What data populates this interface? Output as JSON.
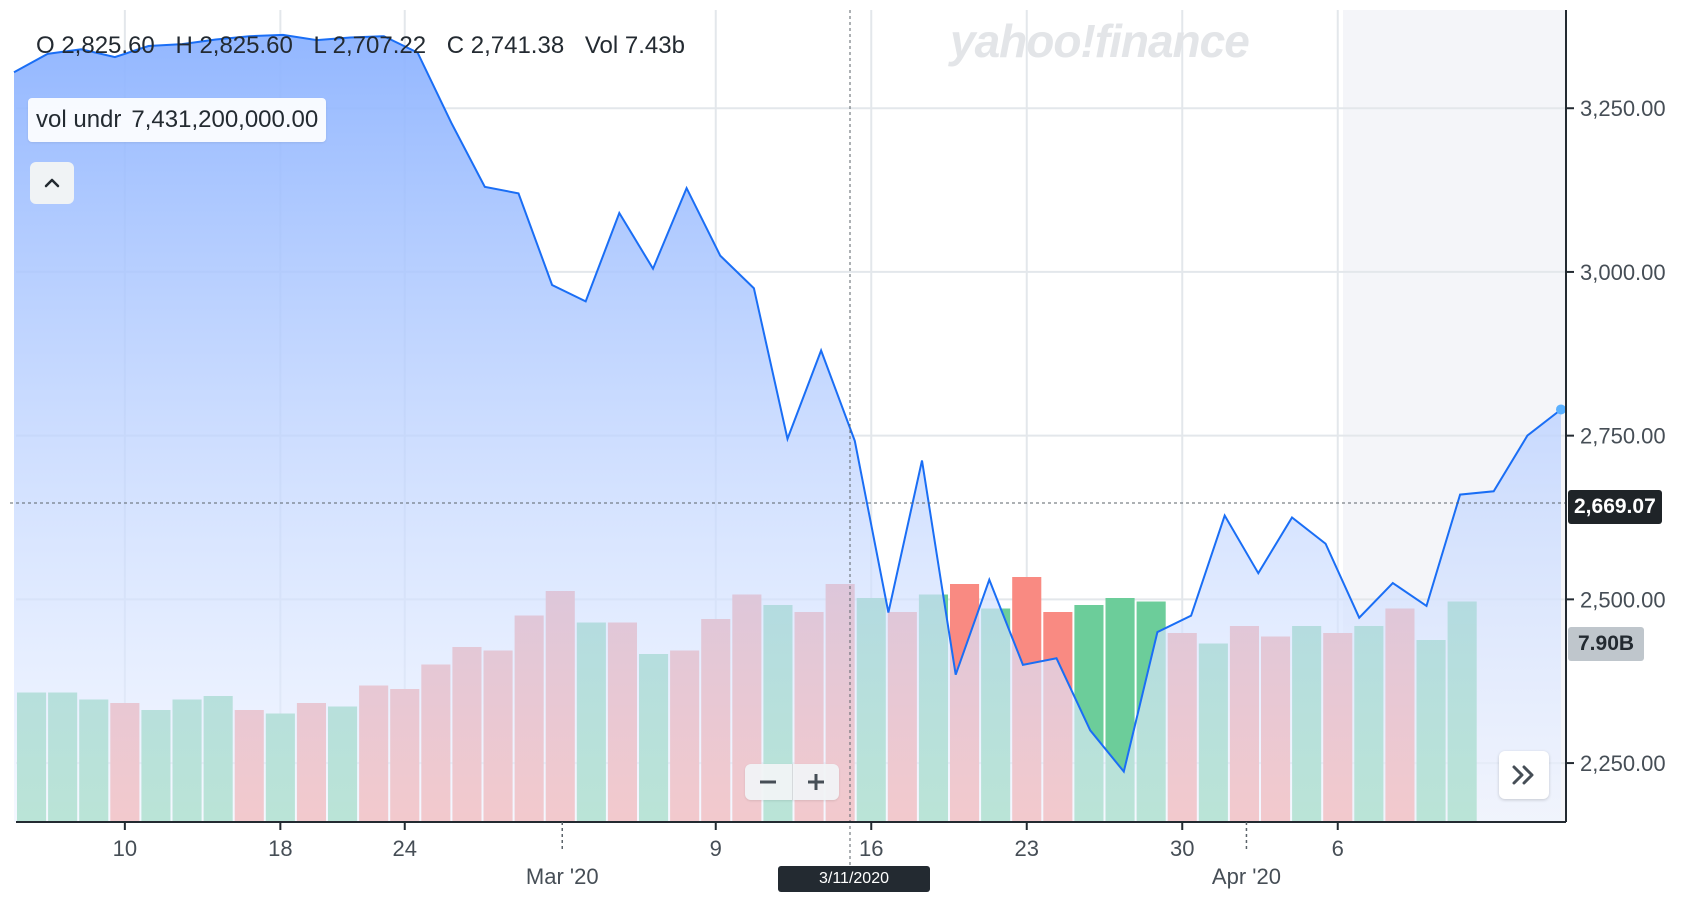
{
  "watermark": "yahoo!finance",
  "ohlc": {
    "open": "O 2,825.60",
    "high": "H 2,825.60",
    "low": "L 2,707.22",
    "close": "C 2,741.38",
    "vol": "Vol 7.43b"
  },
  "tooltip": {
    "label": "vol undr",
    "value": "7,431,200,000.00"
  },
  "crosshair": {
    "price_label": "2,669.07",
    "date_label": "3/11/2020",
    "volume_label": "7.90B"
  },
  "colors": {
    "line": "#1a6ef5",
    "area_top": "#8db3ff",
    "up": "#6ccd9a",
    "down": "#f98a82",
    "grid": "#e3e7eb"
  },
  "chart_data": {
    "type": "line",
    "title": "",
    "xlabel": "",
    "ylabel": "",
    "ylim": [
      2160,
      3400
    ],
    "y_ticks": [
      "3,250.00",
      "3,000.00",
      "2,750.00",
      "2,500.00",
      "2,250.00"
    ],
    "y_tick_values": [
      3250,
      3000,
      2750,
      2500,
      2250
    ],
    "x_ticks": [
      {
        "label": "10",
        "i": 3.5
      },
      {
        "label": "18",
        "i": 8.5
      },
      {
        "label": "24",
        "i": 12.5
      },
      {
        "label": "9",
        "i": 22.5
      },
      {
        "label": "16",
        "i": 27.5
      },
      {
        "label": "23",
        "i": 32.5
      },
      {
        "label": "30",
        "i": 37.5
      },
      {
        "label": "6",
        "i": 42.5
      }
    ],
    "x_month_labels": [
      {
        "label": "Mar '20",
        "i": 17.5
      },
      {
        "label": "Apr '20",
        "i": 39.5
      }
    ],
    "series": [
      {
        "values": [
          3305,
          3333,
          3340,
          3328,
          3345,
          3348,
          3355,
          3360,
          3362,
          3354,
          3358,
          3360,
          3335,
          3228,
          3130,
          3120,
          2980,
          2955,
          3090,
          3005,
          3128,
          3025,
          2975,
          2745,
          2880,
          2742,
          2480,
          2712,
          2385,
          2530,
          2400,
          2410,
          2300,
          2237,
          2450,
          2475,
          2628,
          2540,
          2625,
          2585,
          2472,
          2525,
          2490,
          2660,
          2665,
          2750,
          2790
        ]
      }
    ],
    "volume": {
      "unit": "B",
      "values": [
        3.7,
        3.7,
        3.5,
        3.4,
        3.2,
        3.5,
        3.6,
        3.2,
        3.1,
        3.4,
        3.3,
        3.9,
        3.8,
        4.5,
        5.0,
        4.9,
        5.9,
        6.6,
        5.7,
        5.7,
        4.8,
        4.9,
        5.8,
        6.5,
        6.2,
        6.0,
        6.8,
        6.4,
        6.0,
        6.5,
        6.8,
        6.1,
        7.0,
        6.0,
        6.2,
        6.4,
        6.3,
        5.4,
        5.1,
        5.6,
        5.3,
        5.6,
        5.4,
        5.6,
        6.1,
        5.2,
        6.3
      ],
      "up": [
        true,
        true,
        true,
        false,
        true,
        true,
        true,
        false,
        true,
        false,
        true,
        false,
        false,
        false,
        false,
        false,
        false,
        false,
        true,
        false,
        true,
        false,
        false,
        false,
        true,
        false,
        false,
        true,
        false,
        true,
        false,
        true,
        false,
        false,
        true,
        true,
        true,
        false,
        true,
        false,
        false,
        true,
        false,
        true,
        false,
        true,
        true
      ]
    }
  }
}
